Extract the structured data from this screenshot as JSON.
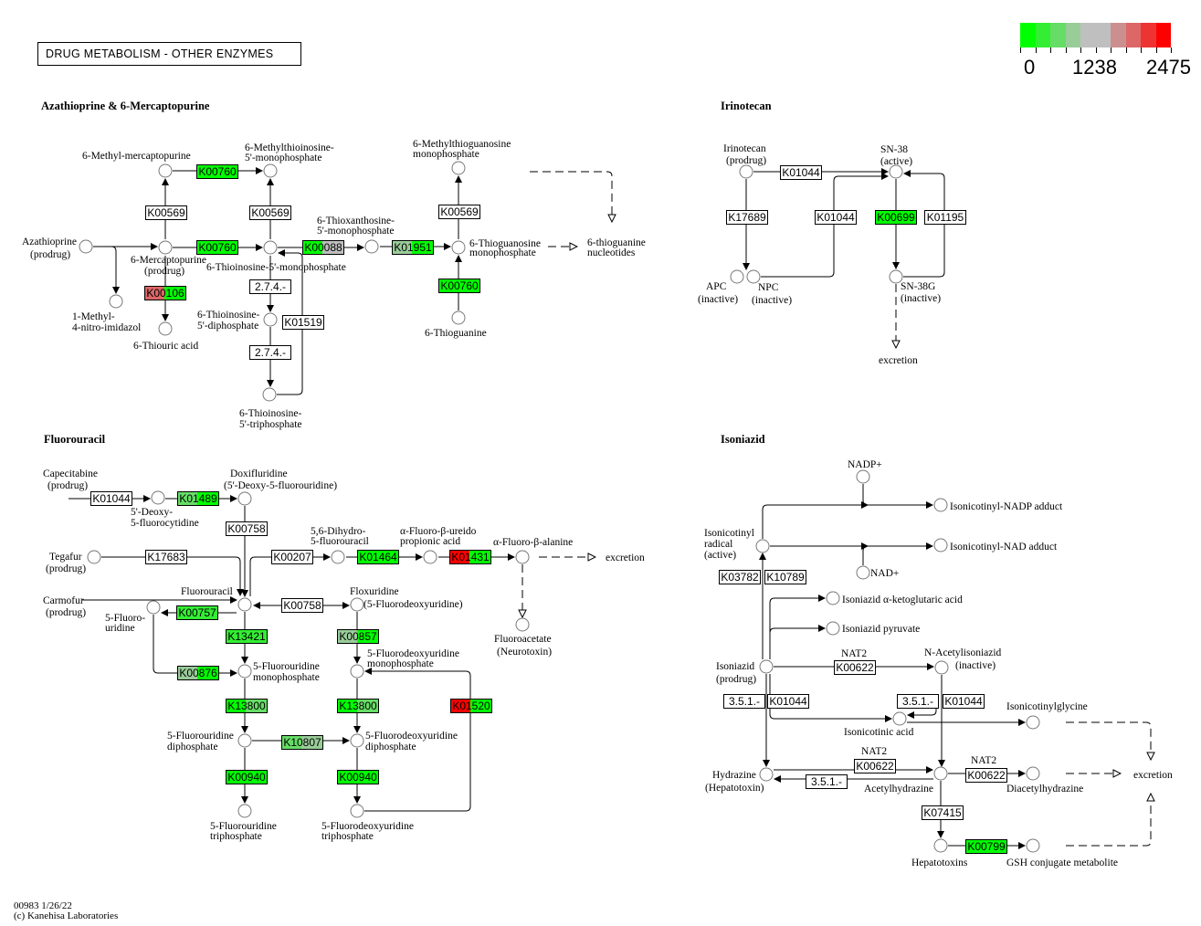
{
  "title": "DRUG METABOLISM - OTHER ENZYMES",
  "legend": {
    "colors": [
      "#00ff00",
      "#33ee33",
      "#66dd66",
      "#99cc99",
      "#bfbfbf",
      "#bfbfbf",
      "#cc8f8f",
      "#dd6666",
      "#ee3333",
      "#ff0000"
    ],
    "labels": [
      "0",
      "1238",
      "2475"
    ]
  },
  "sections": {
    "azathioprine": "Azathioprine & 6-Mercaptopurine",
    "irinotecan": "Irinotecan",
    "fluorouracil": "Fluorouracil",
    "isoniazid": "Isoniazid"
  },
  "footer": {
    "id_date": "00983 1/26/22",
    "copyright": "(c) Kanehisa Laboratories"
  },
  "genes": [
    {
      "label": "K00760",
      "colors": [
        "#00ff00",
        "#00ff00"
      ]
    },
    {
      "label": "K00569",
      "colors": [
        "#ffffff",
        "#ffffff"
      ]
    },
    {
      "label": "K00569",
      "colors": [
        "#ffffff",
        "#ffffff"
      ]
    },
    {
      "label": "K00760",
      "colors": [
        "#00ff00",
        "#00ff00"
      ]
    },
    {
      "label": "K00088",
      "colors": [
        "#00ff00",
        "#bfbfbf"
      ]
    },
    {
      "label": "K01951",
      "colors": [
        "#99cc99",
        "#00ff00"
      ]
    },
    {
      "label": "K00106",
      "colors": [
        "#dd6666",
        "#00ff00"
      ]
    },
    {
      "label": "2.7.4.-",
      "colors": [
        "#ffffff",
        "#ffffff"
      ]
    },
    {
      "label": "K01519",
      "colors": [
        "#ffffff",
        "#ffffff"
      ]
    },
    {
      "label": "2.7.4.-",
      "colors": [
        "#ffffff",
        "#ffffff"
      ]
    },
    {
      "label": "K00569",
      "colors": [
        "#ffffff",
        "#ffffff"
      ]
    },
    {
      "label": "K00760",
      "colors": [
        "#00ff00",
        "#00ff00"
      ]
    },
    {
      "label": "K01044",
      "colors": [
        "#ffffff",
        "#ffffff"
      ]
    },
    {
      "label": "K17689",
      "colors": [
        "#ffffff",
        "#ffffff"
      ]
    },
    {
      "label": "K01044",
      "colors": [
        "#ffffff",
        "#ffffff"
      ]
    },
    {
      "label": "K00699",
      "colors": [
        "#00ff00",
        "#00ff00"
      ]
    },
    {
      "label": "K01195",
      "colors": [
        "#ffffff",
        "#ffffff"
      ]
    },
    {
      "label": "K01044",
      "colors": [
        "#ffffff",
        "#ffffff"
      ]
    },
    {
      "label": "K01489",
      "colors": [
        "#66dd66",
        "#00ff00"
      ]
    },
    {
      "label": "K00758",
      "colors": [
        "#ffffff",
        "#ffffff"
      ]
    },
    {
      "label": "K17683",
      "colors": [
        "#ffffff",
        "#ffffff"
      ]
    },
    {
      "label": "K00207",
      "colors": [
        "#ffffff",
        "#ffffff"
      ]
    },
    {
      "label": "K01464",
      "colors": [
        "#00ff00",
        "#00ff00"
      ]
    },
    {
      "label": "K01431",
      "colors": [
        "#ff0000",
        "#00ff00"
      ]
    },
    {
      "label": "K00757",
      "colors": [
        "#33ee33",
        "#33ee33"
      ]
    },
    {
      "label": "K00758",
      "colors": [
        "#ffffff",
        "#ffffff"
      ]
    },
    {
      "label": "K13421",
      "colors": [
        "#33ee33",
        "#33ee33"
      ]
    },
    {
      "label": "K00857",
      "colors": [
        "#99cc99",
        "#00ff00"
      ]
    },
    {
      "label": "K00876",
      "colors": [
        "#99cc99",
        "#00ff00"
      ]
    },
    {
      "label": "K13800",
      "colors": [
        "#00ff00",
        "#66dd66"
      ]
    },
    {
      "label": "K13800",
      "colors": [
        "#00ff00",
        "#66dd66"
      ]
    },
    {
      "label": "K01520",
      "colors": [
        "#ff0000",
        "#00ff00"
      ]
    },
    {
      "label": "K10807",
      "colors": [
        "#66dd66",
        "#99cc99"
      ]
    },
    {
      "label": "K00940",
      "colors": [
        "#00ff00",
        "#00ff00"
      ]
    },
    {
      "label": "K00940",
      "colors": [
        "#00ff00",
        "#00ff00"
      ]
    },
    {
      "label": "K03782",
      "colors": [
        "#ffffff",
        "#ffffff"
      ]
    },
    {
      "label": "K10789",
      "colors": [
        "#ffffff",
        "#ffffff"
      ]
    },
    {
      "label": "K00622",
      "colors": [
        "#ffffff",
        "#ffffff"
      ]
    },
    {
      "label": "3.5.1.-",
      "colors": [
        "#ffffff",
        "#ffffff"
      ]
    },
    {
      "label": "K01044",
      "colors": [
        "#ffffff",
        "#ffffff"
      ]
    },
    {
      "label": "3.5.1.-",
      "colors": [
        "#ffffff",
        "#ffffff"
      ]
    },
    {
      "label": "K01044",
      "colors": [
        "#ffffff",
        "#ffffff"
      ]
    },
    {
      "label": "K00622",
      "colors": [
        "#ffffff",
        "#ffffff"
      ]
    },
    {
      "label": "3.5.1.-",
      "colors": [
        "#ffffff",
        "#ffffff"
      ]
    },
    {
      "label": "K00622",
      "colors": [
        "#ffffff",
        "#ffffff"
      ]
    },
    {
      "label": "K07415",
      "colors": [
        "#ffffff",
        "#ffffff"
      ]
    },
    {
      "label": "K00799",
      "colors": [
        "#00ff00",
        "#00ff00"
      ]
    }
  ],
  "labels": [
    "6-Methyl-mercaptopurine",
    "6-Methylthioinosine-",
    "5'-monophosphate",
    "6-Methylthioguanosine",
    "monophosphate",
    "Azathioprine",
    "(prodrug)",
    "6-Mercaptopurine",
    "(prodrug)",
    "6-Thioinosine-5'-monophosphate",
    "6-Thioxanthosine-",
    "5'-monophosphate",
    "6-Thioguanosine",
    "monophosphate",
    "6-thioguanine",
    "nucleotides",
    "1-Methyl-",
    "4-nitro-imidazol",
    "6-Thiouric acid",
    "6-Thioinosine-",
    "5'-diphosphate",
    "6-Thioinosine-",
    "5'-triphosphate",
    "6-Thioguanine",
    "Irinotecan",
    "(prodrug)",
    "SN-38",
    "(active)",
    "APC",
    "(inactive)",
    "NPC",
    "(inactive)",
    "SN-38G",
    "(inactive)",
    "excretion",
    "Capecitabine",
    "(prodrug)",
    "5'-Deoxy-",
    "5-fluorocytidine",
    "Doxifluridine",
    "(5'-Deoxy-5-fluorouridine)",
    "Tegafur",
    "(prodrug)",
    "5,6-Dihydro-",
    "5-fluorouracil",
    "α-Fluoro-β-ureido",
    "propionic acid",
    "α-Fluoro-β-alanine",
    "excretion",
    "Fluoroacetate",
    "(Neurotoxin)",
    "Fluorouracil",
    "Carmofur",
    "(prodrug)",
    "5-Fluoro-",
    "uridine",
    "Floxuridine",
    "(5-Fluorodeoxyuridine)",
    "5-Fluorouridine",
    "monophosphate",
    "5-Fluorodeoxyuridine",
    "monophosphate",
    "5-Fluorouridine",
    "diphosphate",
    "5-Fluorodeoxyuridine",
    "diphosphate",
    "5-Fluorouridine",
    "triphosphate",
    "5-Fluorodeoxyuridine",
    "triphosphate",
    "NADP+",
    "Isonicotinyl-NADP adduct",
    "Isonicotinyl",
    "radical",
    "(active)",
    "Isonicotinyl-NAD adduct",
    "NAD+",
    "Isoniazid α-ketoglutaric acid",
    "Isoniazid pyruvate",
    "Isoniazid",
    "(prodrug)",
    "NAT2",
    "N-Acetylisoniazid",
    "(inactive)",
    "Isonicotinylglycine",
    "Isonicotinic acid",
    "Hydrazine",
    "(Hepatotoxin)",
    "NAT2",
    "Acetylhydrazine",
    "NAT2",
    "Diacetylhydrazine",
    "excretion",
    "Hepatotoxins",
    "GSH conjugate metabolite"
  ]
}
